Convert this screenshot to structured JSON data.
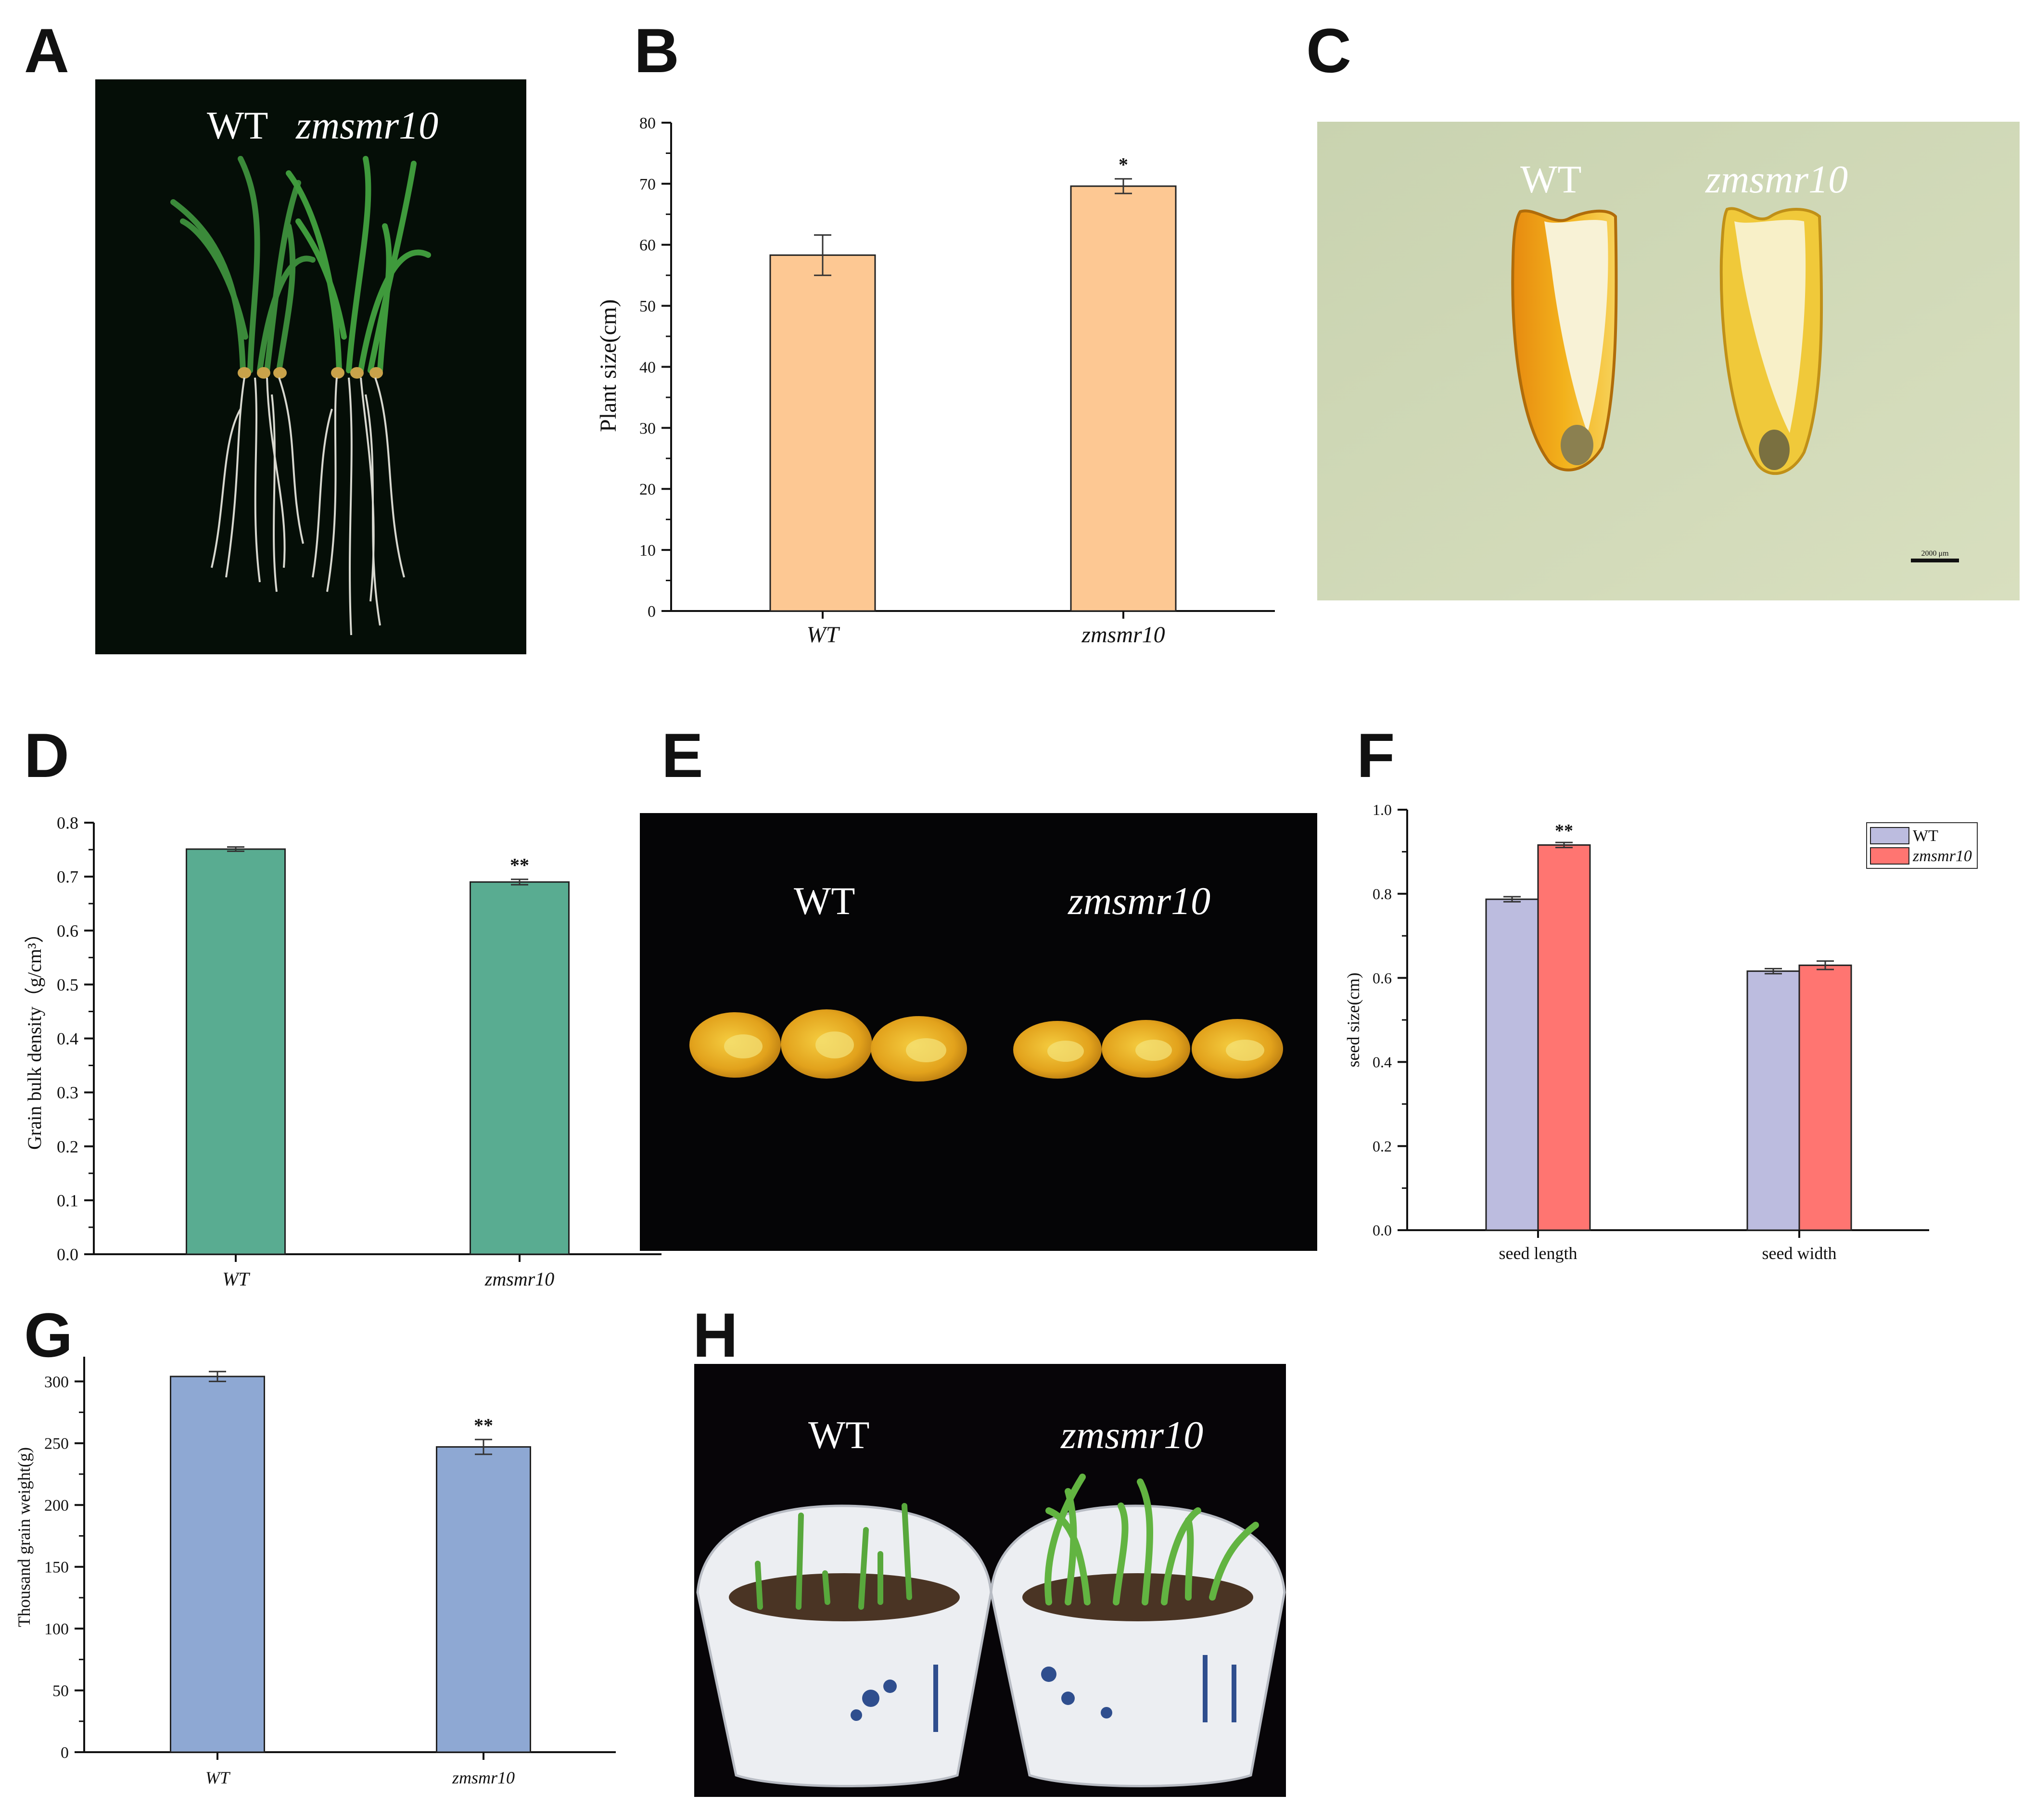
{
  "panel_letters": [
    "A",
    "B",
    "C",
    "D",
    "E",
    "F",
    "G",
    "H"
  ],
  "photos": {
    "A": {
      "labels": [
        "WT",
        "zmsmr10"
      ]
    },
    "C": {
      "labels": [
        "WT",
        "zmsmr10"
      ],
      "scale_bar": "2000 μm"
    },
    "E": {
      "labels": [
        "WT",
        "zmsmr10"
      ]
    },
    "H": {
      "labels": [
        "WT",
        "zmsmr10"
      ]
    }
  },
  "colors": {
    "B": "#fdc893",
    "D": "#59ac91",
    "F_wt": "#bcbcdf",
    "F_mut": "#ff7571",
    "G": "#8ea8d3"
  },
  "chart_data": [
    {
      "panel": "B",
      "type": "bar",
      "categories": [
        "WT",
        "zmsmr10"
      ],
      "values": [
        58.3,
        69.6
      ],
      "errors": [
        3.3,
        1.2
      ],
      "significance": [
        "",
        "*"
      ],
      "ylabel": "Plant size(cm)",
      "ylim": [
        0,
        80
      ],
      "yticks": [
        "0",
        "10",
        "20",
        "30",
        "40",
        "50",
        "60",
        "70",
        "80"
      ]
    },
    {
      "panel": "D",
      "type": "bar",
      "categories": [
        "WT",
        "zmsmr10"
      ],
      "values": [
        0.751,
        0.69
      ],
      "errors": [
        0.004,
        0.005
      ],
      "significance": [
        "",
        "**"
      ],
      "ylabel": "Grain bulk density（g/cm³）",
      "ylim": [
        0,
        0.8
      ],
      "yticks": [
        "0.0",
        "0.1",
        "0.2",
        "0.3",
        "0.4",
        "0.5",
        "0.6",
        "0.7",
        "0.8"
      ]
    },
    {
      "panel": "F",
      "type": "bar",
      "categories": [
        "seed length",
        "seed width"
      ],
      "series": [
        {
          "name": "WT",
          "values": [
            0.787,
            0.616
          ],
          "errors": [
            0.006,
            0.006
          ]
        },
        {
          "name": "zmsmr10",
          "values": [
            0.916,
            0.63
          ],
          "errors": [
            0.006,
            0.01
          ]
        }
      ],
      "significance": [
        "**",
        ""
      ],
      "ylabel": "seed size(cm)",
      "ylim": [
        0,
        1.0
      ],
      "yticks": [
        "0.0",
        "0.2",
        "0.4",
        "0.6",
        "0.8",
        "1.0"
      ],
      "legend": "top-right"
    },
    {
      "panel": "G",
      "type": "bar",
      "categories": [
        "WT",
        "zmsmr10"
      ],
      "values": [
        304,
        247
      ],
      "errors": [
        4,
        6
      ],
      "significance": [
        "",
        "**"
      ],
      "ylabel": "Thousand grain weight(g)",
      "ylim": [
        0,
        320
      ],
      "yticks": [
        "0",
        "50",
        "100",
        "150",
        "200",
        "250",
        "300"
      ]
    }
  ]
}
